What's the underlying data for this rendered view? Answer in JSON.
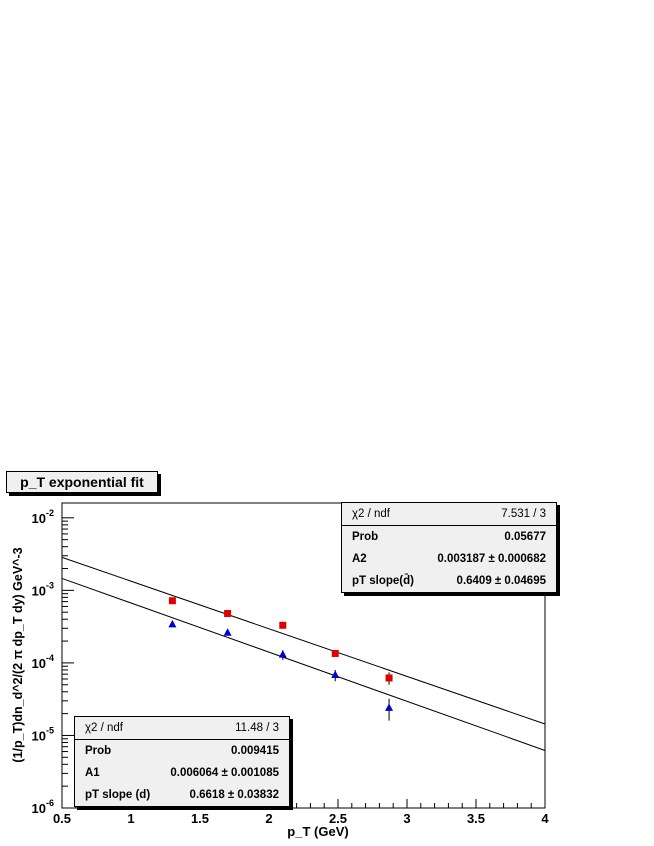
{
  "title": "p_T exponential fit",
  "chart_data": {
    "type": "scatter",
    "xlabel": "p_T (GeV)",
    "ylabel": "(1/p_T)dn_d^2/(2 π dp_T dy) GeV^-3",
    "xlim": [
      0.5,
      4
    ],
    "ylim": [
      1e-06,
      0.016
    ],
    "yscale": "log",
    "x_ticks": [
      "0.5",
      "1",
      "1.5",
      "2",
      "2.5",
      "3",
      "3.5",
      "4"
    ],
    "y_ticks": [
      {
        "base": "10",
        "exp": "-6",
        "value": 1e-06
      },
      {
        "base": "10",
        "exp": "-5",
        "value": 1e-05
      },
      {
        "base": "10",
        "exp": "-4",
        "value": 0.0001
      },
      {
        "base": "10",
        "exp": "-3",
        "value": 0.001
      },
      {
        "base": "10",
        "exp": "-2",
        "value": 0.01
      }
    ],
    "series": [
      {
        "marker": "square",
        "color": "#e00000",
        "x": [
          1.3,
          1.7,
          2.1,
          2.48,
          2.87
        ],
        "y": [
          0.00072,
          0.00048,
          0.00033,
          0.000135,
          6.2e-05
        ],
        "err": [
          4e-05,
          3e-05,
          2e-05,
          1e-05,
          1.2e-05
        ]
      },
      {
        "marker": "triangle",
        "color": "#0000d0",
        "x": [
          1.3,
          1.7,
          2.1,
          2.48,
          2.87
        ],
        "y": [
          0.00034,
          0.00026,
          0.00013,
          6.8e-05,
          2.4e-05
        ],
        "err": [
          2e-05,
          2e-05,
          2e-05,
          1.2e-05,
          8e-06
        ]
      }
    ],
    "fits": [
      {
        "amplitude": 0.003187,
        "slope": 0.6409,
        "color": "#000000"
      },
      {
        "amplitude": 0.006064,
        "slope": 0.6618,
        "color": "#000000"
      }
    ],
    "grid": false
  },
  "stats_top": {
    "rows": [
      {
        "label": "χ2 / ndf",
        "value": "7.531 / 3"
      },
      {
        "label": "Prob",
        "value": "0.05677"
      },
      {
        "label": "A2",
        "value": "0.003187 ± 0.000682"
      },
      {
        "label": "pT slope(d̄)",
        "value": "0.6409 ± 0.04695"
      }
    ]
  },
  "stats_bottom": {
    "rows": [
      {
        "label": "χ2 / ndf",
        "value": "11.48 / 3"
      },
      {
        "label": "Prob",
        "value": "0.009415"
      },
      {
        "label": "A1",
        "value": "0.006064  ± 0.001085"
      },
      {
        "label": "pT slope (d)",
        "value": "0.6618 ± 0.03832"
      }
    ]
  }
}
